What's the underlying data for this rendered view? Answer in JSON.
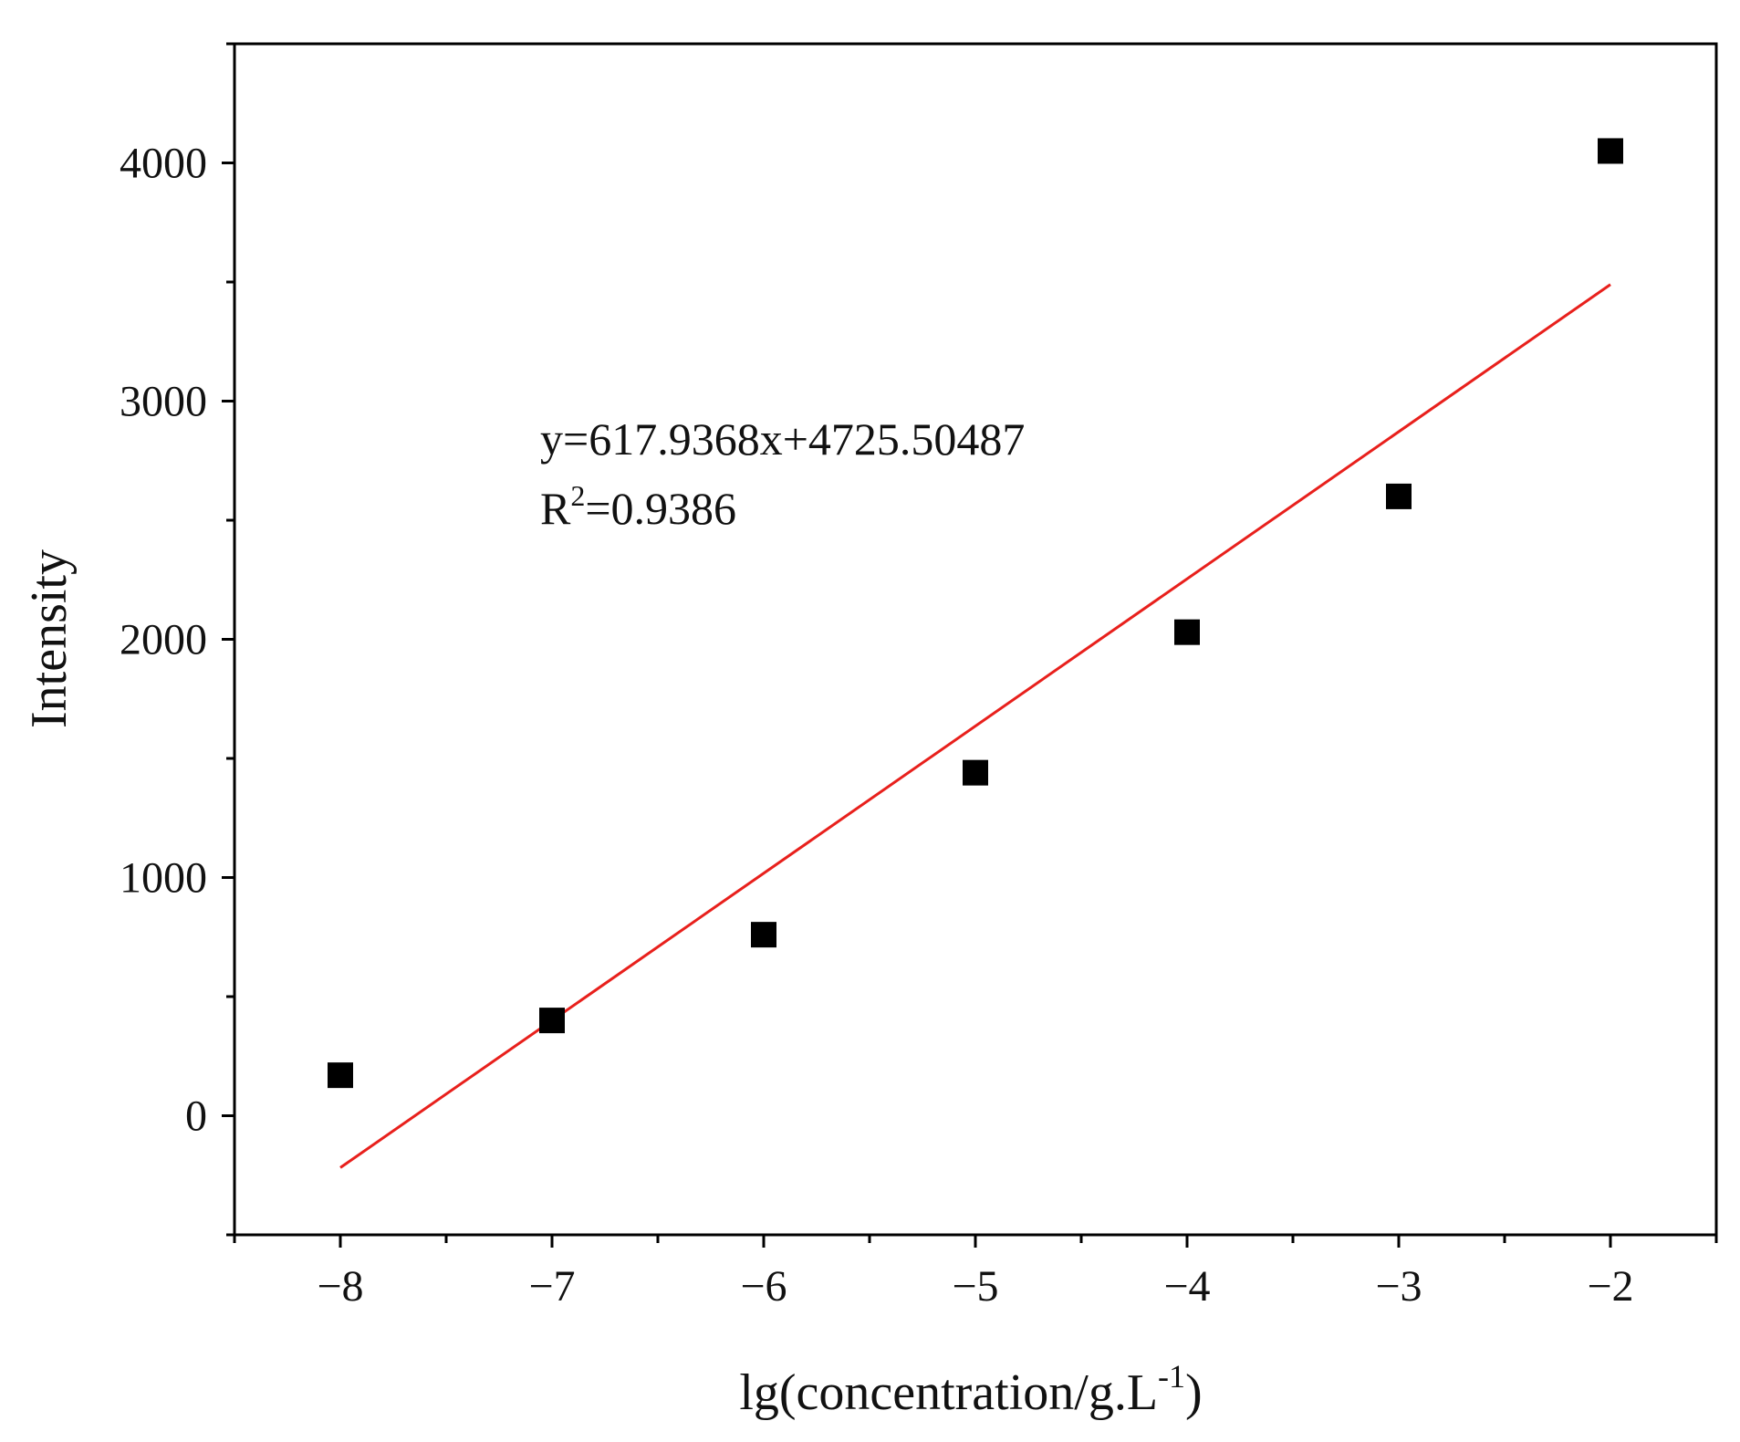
{
  "chart_data": {
    "type": "scatter",
    "xlabel": "lg(concentration/g.L",
    "xlabel_sup": "-1",
    "xlabel_end": ")",
    "ylabel": "Intensity",
    "xlim": [
      -8.5,
      -1.5
    ],
    "ylim": [
      -500,
      4500
    ],
    "x_ticks": [
      -8,
      -7,
      -6,
      -5,
      -4,
      -3,
      -2
    ],
    "x_tick_labels": [
      "−8",
      "−7",
      "−6",
      "−5",
      "−4",
      "−3",
      "−2"
    ],
    "y_ticks": [
      0,
      1000,
      2000,
      3000,
      4000
    ],
    "y_tick_labels": [
      "0",
      "1000",
      "2000",
      "3000",
      "4000"
    ],
    "grid": false,
    "series": [
      {
        "marker": "square",
        "color": "#000000",
        "x": [
          -8,
          -7,
          -6,
          -5,
          -4,
          -3,
          -2
        ],
        "y": [
          170,
          400,
          760,
          1440,
          2030,
          2600,
          4050
        ]
      }
    ],
    "fit_line": {
      "color": "#e8201c",
      "slope": 617.9368,
      "intercept": 4725.50487,
      "x_range": [
        -8,
        -2
      ]
    },
    "annotations": {
      "equation": "y=617.9368x+4725.50487",
      "r2_prefix": "R",
      "r2_sup": "2",
      "r2_value": "=0.9386"
    }
  }
}
